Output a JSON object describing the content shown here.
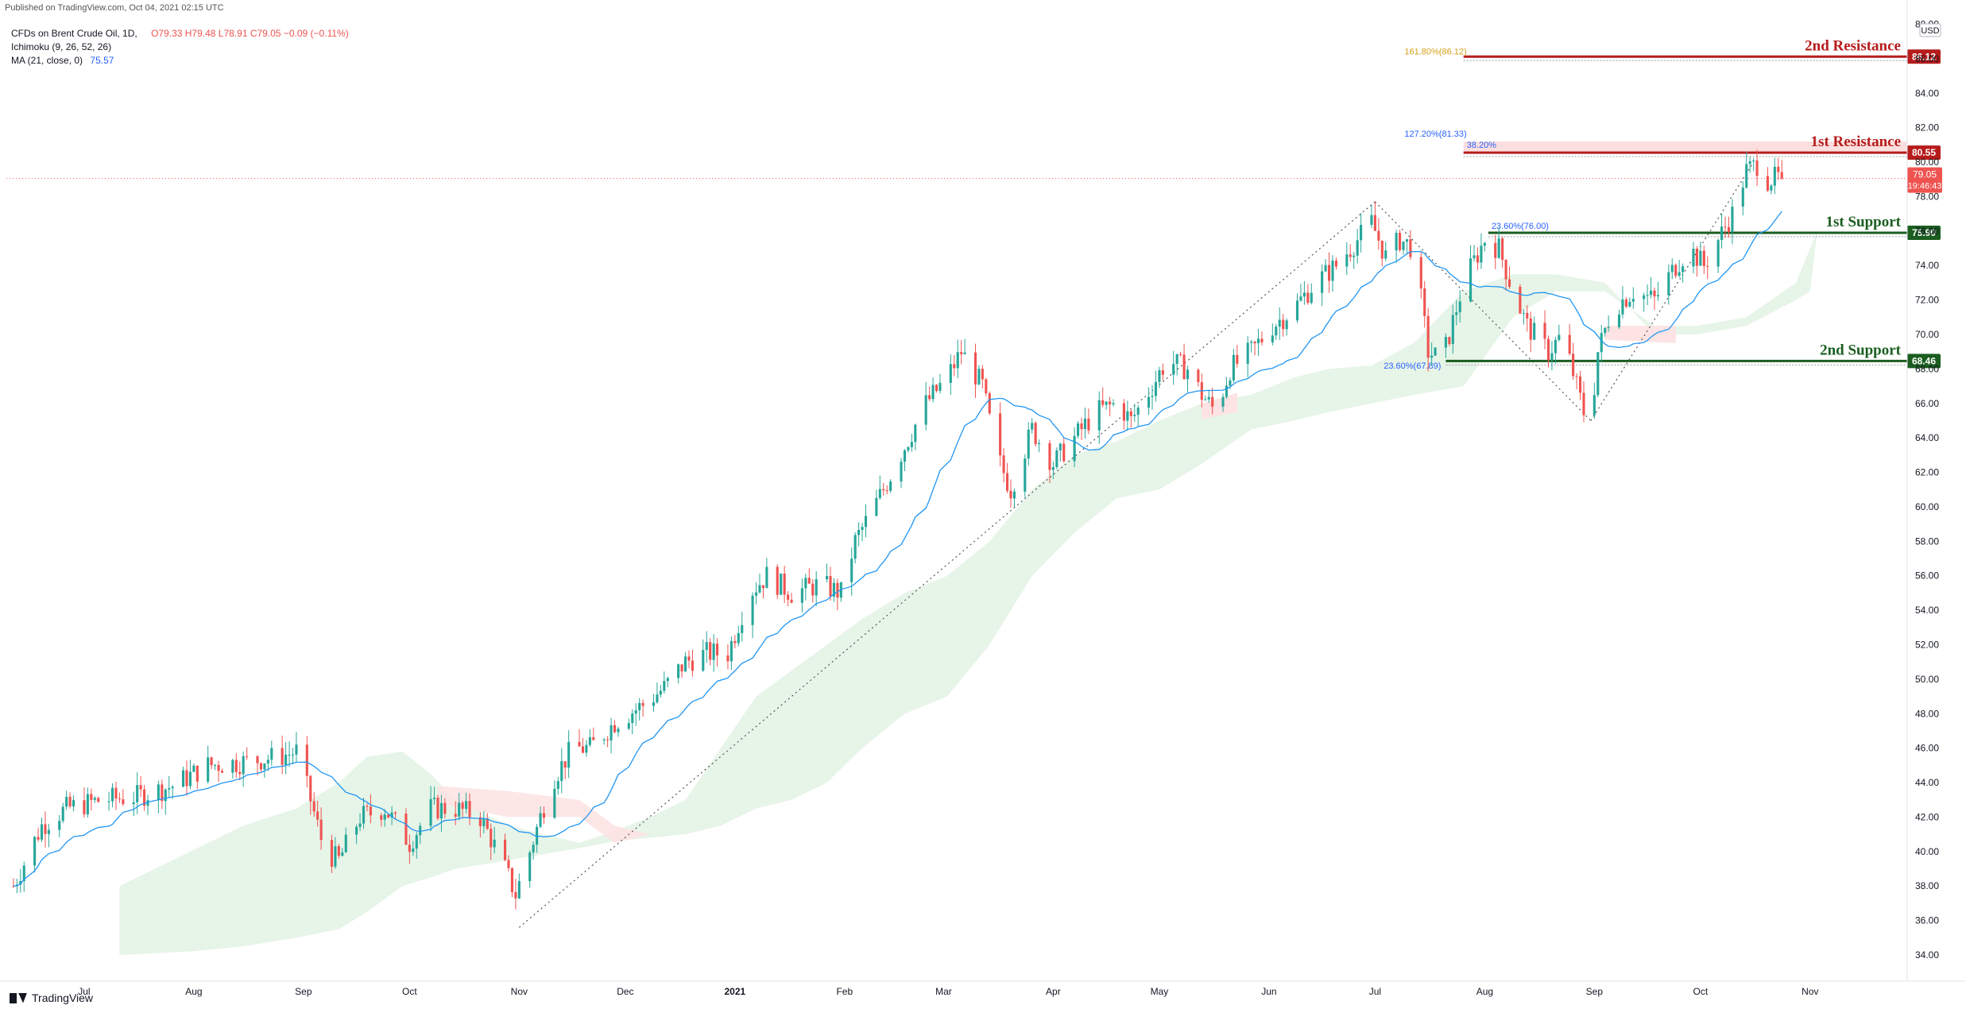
{
  "header": {
    "published": "Published on TradingView.com, Oct 04, 2021 02:15 UTC",
    "symbol_line": "CFDs on Brent Crude Oil, 1D,",
    "ohlc": "O79.33  H79.48  L78.91  C79.05  −0.09 (−0.11%)",
    "ichimoku": "Ichimoku (9, 26, 52, 26)",
    "ma_label": "MA (21, close, 0)",
    "ma_value": "75.57"
  },
  "footer": {
    "brand": "TradingView"
  },
  "colors": {
    "up": "#26a69a",
    "down": "#ef5350",
    "ma": "#2196f3",
    "resistance": "#b71c1c",
    "support": "#1b5e20",
    "cloud_green": "#e3f2e4",
    "cloud_red": "#fde3e3"
  },
  "chart_data": {
    "type": "candlestick",
    "currency_badge": "USD",
    "x_labels": [
      "Jul",
      "Aug",
      "Sep",
      "Oct",
      "Nov",
      "Dec",
      "2021",
      "Feb",
      "Mar",
      "Apr",
      "May",
      "Jun",
      "Jul",
      "Aug",
      "Sep",
      "Oct",
      "Nov"
    ],
    "x_label_days": [
      0,
      31,
      62,
      92,
      123,
      153,
      184,
      215,
      243,
      274,
      304,
      335,
      365,
      396,
      427,
      457,
      488
    ],
    "x_range_days": [
      -22,
      515
    ],
    "ylim": [
      33.4,
      88.3
    ],
    "y_ticks": [
      "88.00",
      "86.00",
      "84.00",
      "82.00",
      "80.00",
      "78.00",
      "76.00",
      "74.00",
      "72.00",
      "70.00",
      "68.00",
      "66.00",
      "64.00",
      "62.00",
      "60.00",
      "58.00",
      "56.00",
      "54.00",
      "52.00",
      "50.00",
      "48.00",
      "46.00",
      "44.00",
      "42.00",
      "40.00",
      "38.00",
      "36.00",
      "34.00"
    ],
    "price_path": [
      [
        -20,
        38.0
      ],
      [
        -12,
        41.5
      ],
      [
        -5,
        42.5
      ],
      [
        5,
        43.0
      ],
      [
        15,
        43.2
      ],
      [
        25,
        43.8
      ],
      [
        35,
        45.0
      ],
      [
        45,
        45.2
      ],
      [
        55,
        45.5
      ],
      [
        60,
        45.8
      ],
      [
        64,
        43.0
      ],
      [
        68,
        40.0
      ],
      [
        72,
        39.5
      ],
      [
        78,
        42.0
      ],
      [
        85,
        42.5
      ],
      [
        92,
        40.5
      ],
      [
        98,
        42.5
      ],
      [
        105,
        42.5
      ],
      [
        112,
        42.0
      ],
      [
        118,
        39.5
      ],
      [
        122,
        37.5
      ],
      [
        126,
        40.0
      ],
      [
        132,
        44.0
      ],
      [
        138,
        46.0
      ],
      [
        143,
        46.0
      ],
      [
        150,
        47.5
      ],
      [
        158,
        48.5
      ],
      [
        164,
        49.5
      ],
      [
        170,
        51.0
      ],
      [
        176,
        51.5
      ],
      [
        182,
        51.5
      ],
      [
        188,
        55.0
      ],
      [
        193,
        56.0
      ],
      [
        200,
        55.0
      ],
      [
        208,
        55.5
      ],
      [
        214,
        55.0
      ],
      [
        218,
        58.0
      ],
      [
        226,
        61.0
      ],
      [
        232,
        63.5
      ],
      [
        238,
        66.0
      ],
      [
        244,
        67.5
      ],
      [
        248,
        69.0
      ],
      [
        254,
        67.0
      ],
      [
        258,
        63.0
      ],
      [
        262,
        61.0
      ],
      [
        268,
        64.5
      ],
      [
        274,
        62.5
      ],
      [
        280,
        64.0
      ],
      [
        286,
        65.5
      ],
      [
        292,
        66.0
      ],
      [
        296,
        65.0
      ],
      [
        302,
        67.0
      ],
      [
        306,
        68.5
      ],
      [
        312,
        68.0
      ],
      [
        316,
        66.5
      ],
      [
        320,
        65.5
      ],
      [
        324,
        68.0
      ],
      [
        330,
        69.0
      ],
      [
        336,
        70.5
      ],
      [
        342,
        71.5
      ],
      [
        348,
        73.0
      ],
      [
        354,
        74.0
      ],
      [
        360,
        75.5
      ],
      [
        364,
        76.5
      ],
      [
        368,
        74.5
      ],
      [
        372,
        75.5
      ],
      [
        376,
        75.0
      ],
      [
        380,
        69.0
      ],
      [
        384,
        68.5
      ],
      [
        390,
        73.0
      ],
      [
        396,
        75.5
      ],
      [
        400,
        75.0
      ],
      [
        404,
        72.5
      ],
      [
        408,
        70.5
      ],
      [
        414,
        69.0
      ],
      [
        418,
        70.0
      ],
      [
        422,
        67.0
      ],
      [
        424,
        65.5
      ],
      [
        426,
        65.0
      ],
      [
        428,
        69.0
      ],
      [
        432,
        71.5
      ],
      [
        438,
        72.5
      ],
      [
        444,
        72.0
      ],
      [
        450,
        74.0
      ],
      [
        454,
        75.0
      ],
      [
        458,
        74.0
      ],
      [
        462,
        75.5
      ],
      [
        466,
        77.0
      ],
      [
        470,
        79.5
      ],
      [
        474,
        80.0
      ],
      [
        476,
        79.0
      ],
      [
        480,
        79.1
      ]
    ],
    "last_close": 79.05,
    "ma_period": 21,
    "levels": [
      {
        "name": "2nd Resistance",
        "price": 86.12,
        "label": "86.12",
        "kind": "resistance",
        "from_day": 390
      },
      {
        "name": "1st Resistance",
        "price": 80.55,
        "label": "80.55",
        "kind": "resistance",
        "from_day": 390
      },
      {
        "name": "1st Support",
        "price": 75.9,
        "label": "75.90",
        "kind": "support",
        "from_day": 397
      },
      {
        "name": "2nd Support",
        "price": 68.46,
        "label": "68.46",
        "kind": "support",
        "from_day": 385
      }
    ],
    "current_price_badge": {
      "price": "79.05",
      "countdown": "19:46:43"
    },
    "fib_labels": [
      {
        "text": "161.80%(86.12)",
        "price": 86.12,
        "day": 390
      },
      {
        "text": "127.20%(81.33)",
        "price": 81.33,
        "day": 390
      },
      {
        "text": "38.20%",
        "price": 80.7,
        "day": 390
      },
      {
        "text": "23.60%(76.00)",
        "price": 76.0,
        "day": 397
      },
      {
        "text": "23.60%(67.89)",
        "price": 67.89,
        "day": 385
      }
    ],
    "dotted_trendlines": [
      {
        "from": [
          123,
          35.6
        ],
        "to": [
          365,
          77.7
        ]
      },
      {
        "from": [
          365,
          77.7
        ],
        "to": [
          426,
          65.0
        ]
      },
      {
        "from": [
          426,
          65.0
        ],
        "to": [
          472,
          80.0
        ]
      }
    ],
    "cloud_green": [
      [
        -22,
        34.0
      ],
      [
        10,
        34.0
      ],
      [
        10,
        38.0
      ],
      [
        30,
        40.0
      ],
      [
        45,
        41.5
      ],
      [
        60,
        42.5
      ],
      [
        72,
        44.0
      ],
      [
        80,
        45.5
      ],
      [
        90,
        45.8
      ],
      [
        98,
        44.5
      ],
      [
        105,
        43.0
      ],
      [
        120,
        41.5
      ],
      [
        140,
        40.5
      ],
      [
        150,
        41.2
      ],
      [
        160,
        42.0
      ],
      [
        170,
        43.0
      ],
      [
        180,
        46.0
      ],
      [
        190,
        49.0
      ],
      [
        200,
        50.5
      ],
      [
        210,
        52.0
      ],
      [
        220,
        53.5
      ],
      [
        232,
        55.0
      ],
      [
        244,
        56.0
      ],
      [
        256,
        58.0
      ],
      [
        268,
        61.0
      ],
      [
        280,
        63.0
      ],
      [
        292,
        63.8
      ],
      [
        304,
        65.0
      ],
      [
        316,
        66.0
      ],
      [
        330,
        66.5
      ],
      [
        342,
        67.5
      ],
      [
        352,
        68.0
      ],
      [
        364,
        68.2
      ],
      [
        376,
        69.5
      ],
      [
        390,
        72.5
      ],
      [
        404,
        73.5
      ],
      [
        416,
        73.5
      ],
      [
        430,
        73.0
      ],
      [
        444,
        70.0
      ],
      [
        456,
        70.0
      ],
      [
        470,
        70.5
      ],
      [
        484,
        72.0
      ],
      [
        488,
        72.5
      ],
      [
        490,
        76.0
      ]
    ],
    "cloud_green_lower": [
      [
        490,
        76.0
      ],
      [
        484,
        73.0
      ],
      [
        470,
        71.0
      ],
      [
        456,
        70.5
      ],
      [
        444,
        70.5
      ],
      [
        430,
        72.5
      ],
      [
        416,
        72.5
      ],
      [
        404,
        71.0
      ],
      [
        390,
        67.0
      ],
      [
        376,
        66.5
      ],
      [
        364,
        66.0
      ],
      [
        352,
        65.5
      ],
      [
        342,
        65.0
      ],
      [
        330,
        64.5
      ],
      [
        316,
        62.5
      ],
      [
        304,
        61.0
      ],
      [
        292,
        60.5
      ],
      [
        280,
        58.5
      ],
      [
        268,
        56.0
      ],
      [
        256,
        52.0
      ],
      [
        244,
        49.0
      ],
      [
        232,
        48.0
      ],
      [
        220,
        46.0
      ],
      [
        210,
        44.0
      ],
      [
        200,
        43.0
      ],
      [
        190,
        42.5
      ],
      [
        180,
        41.5
      ],
      [
        170,
        41.0
      ],
      [
        160,
        40.8
      ],
      [
        150,
        40.6
      ],
      [
        140,
        40.2
      ],
      [
        120,
        39.5
      ],
      [
        105,
        39.0
      ],
      [
        98,
        38.5
      ],
      [
        90,
        38.0
      ],
      [
        80,
        36.5
      ],
      [
        72,
        35.5
      ],
      [
        60,
        35.0
      ],
      [
        45,
        34.5
      ],
      [
        30,
        34.2
      ],
      [
        10,
        34.0
      ]
    ],
    "cloud_red": [
      [
        100,
        43.8
      ],
      [
        120,
        43.5
      ],
      [
        140,
        43.0
      ],
      [
        150,
        41.5
      ],
      [
        160,
        41.0
      ],
      [
        150,
        40.5
      ],
      [
        140,
        42.0
      ],
      [
        120,
        42.0
      ],
      [
        100,
        42.8
      ]
    ]
  }
}
